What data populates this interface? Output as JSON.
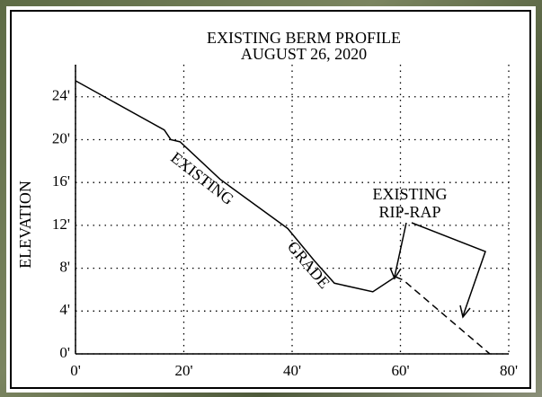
{
  "chart_data": {
    "type": "line",
    "title": "EXISTING BERM PROFILE",
    "subtitle": "AUGUST 26, 2020",
    "y_label": "ELEVATION",
    "annotations": [
      "EXISTING",
      "GRADE",
      "EXISTING",
      "RIP-RAP"
    ],
    "series": [
      {
        "color": "#000000",
        "dashed": false,
        "x": [
          0,
          16.4,
          17.6,
          19.3,
          26.7,
          39.2,
          44.1,
          47.8,
          54.9,
          59.1
        ],
        "values": [
          25.5,
          20.9,
          20.0,
          19.8,
          16.3,
          11.7,
          8.7,
          6.6,
          5.8,
          7.2
        ]
      },
      {
        "color": "#000000",
        "dashed": true,
        "x": [
          59.1,
          60.5,
          76.5
        ],
        "values": [
          7.2,
          6.9,
          0
        ]
      }
    ],
    "xlim": [
      0,
      80
    ],
    "ylim": [
      0,
      27
    ],
    "xticks": [
      {
        "value": 0,
        "label": "0'"
      },
      {
        "value": 20,
        "label": "20'"
      },
      {
        "value": 40,
        "label": "40'"
      },
      {
        "value": 60,
        "label": "60'"
      },
      {
        "value": 80,
        "label": "80'"
      }
    ],
    "yticks": [
      {
        "value": 0,
        "label": "0'"
      },
      {
        "value": 4,
        "label": "4'"
      },
      {
        "value": 8,
        "label": "8'"
      },
      {
        "value": 12,
        "label": "12'"
      },
      {
        "value": 16,
        "label": "16'"
      },
      {
        "value": 20,
        "label": "20'"
      },
      {
        "value": 24,
        "label": "24'"
      }
    ],
    "grid": true
  }
}
